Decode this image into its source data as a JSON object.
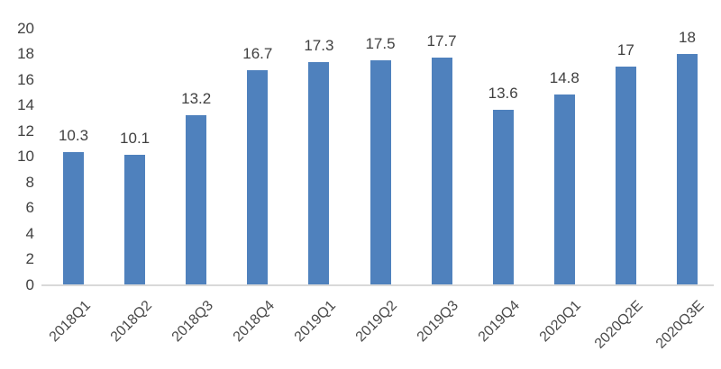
{
  "chart_data": {
    "type": "bar",
    "title": "",
    "xlabel": "",
    "ylabel": "",
    "categories": [
      "2018Q1",
      "2018Q2",
      "2018Q3",
      "2018Q4",
      "2019Q1",
      "2019Q2",
      "2019Q3",
      "2019Q4",
      "2020Q1",
      "2020Q2E",
      "2020Q3E"
    ],
    "values": [
      10.3,
      10.1,
      13.2,
      16.7,
      17.3,
      17.5,
      17.7,
      13.6,
      14.8,
      17,
      18
    ],
    "value_labels": [
      "10.3",
      "10.1",
      "13.2",
      "16.7",
      "17.3",
      "17.5",
      "17.7",
      "13.6",
      "14.8",
      "17",
      "18"
    ],
    "ylim": [
      0,
      20
    ],
    "yticks": [
      0,
      2,
      4,
      6,
      8,
      10,
      12,
      14,
      16,
      18,
      20
    ],
    "grid": false,
    "legend": false,
    "x_label_rotation_deg": 45,
    "colors": {
      "bar": "#4F81BD",
      "axis_line": "#D9D9D9",
      "tick_text": "#404040",
      "x_tick_text": "#4A4A4A",
      "background": "#FFFFFF"
    }
  }
}
